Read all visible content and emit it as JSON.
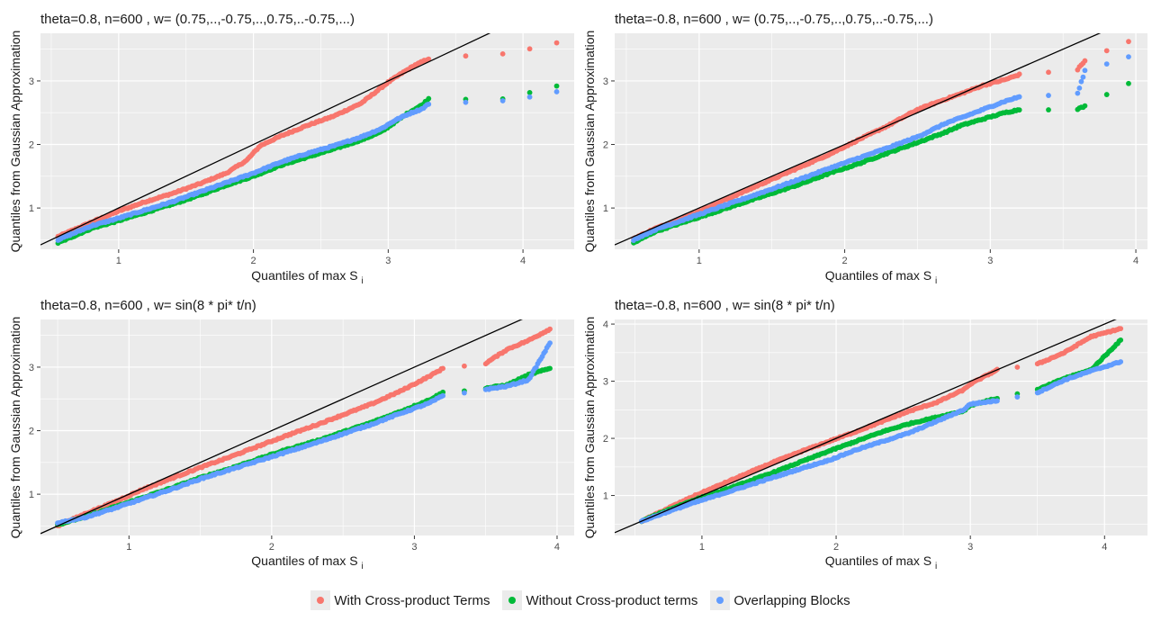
{
  "chart_data": [
    {
      "type": "scatter",
      "title": "theta=0.8, n=600 , w= (0.75,..,-0.75,..,0.75,..-0.75,...)",
      "xlabel": "Quantiles of max S",
      "xlabel_sub": "i",
      "ylabel": "Quantiles from Gaussian Approximation",
      "xlim": [
        0.42,
        4.38
      ],
      "ylim": [
        0.35,
        3.75
      ],
      "xticks": [
        1,
        2,
        3,
        4
      ],
      "yticks": [
        1,
        2,
        3
      ],
      "reference_line": {
        "slope": 1,
        "intercept": 0
      },
      "series": [
        {
          "name": "With Cross-product Terms",
          "points": [
            [
              0.55,
              0.55
            ],
            [
              0.8,
              0.78
            ],
            [
              1.0,
              0.95
            ],
            [
              1.2,
              1.1
            ],
            [
              1.4,
              1.23
            ],
            [
              1.6,
              1.38
            ],
            [
              1.8,
              1.55
            ],
            [
              1.95,
              1.75
            ],
            [
              2.05,
              1.98
            ],
            [
              2.2,
              2.13
            ],
            [
              2.4,
              2.3
            ],
            [
              2.6,
              2.45
            ],
            [
              2.8,
              2.65
            ],
            [
              3.0,
              2.98
            ],
            [
              3.1,
              3.12
            ],
            [
              3.2,
              3.25
            ],
            [
              3.3,
              3.35
            ],
            [
              3.85,
              3.42
            ],
            [
              4.25,
              3.6
            ]
          ]
        },
        {
          "name": "Without Cross-product terms",
          "points": [
            [
              0.55,
              0.45
            ],
            [
              0.8,
              0.68
            ],
            [
              1.0,
              0.8
            ],
            [
              1.2,
              0.93
            ],
            [
              1.4,
              1.06
            ],
            [
              1.6,
              1.2
            ],
            [
              1.8,
              1.36
            ],
            [
              2.0,
              1.5
            ],
            [
              2.2,
              1.67
            ],
            [
              2.4,
              1.8
            ],
            [
              2.6,
              1.93
            ],
            [
              2.8,
              2.07
            ],
            [
              2.95,
              2.2
            ],
            [
              3.05,
              2.35
            ],
            [
              3.15,
              2.5
            ],
            [
              3.25,
              2.62
            ],
            [
              3.3,
              2.72
            ],
            [
              3.85,
              2.72
            ],
            [
              4.25,
              2.92
            ]
          ]
        },
        {
          "name": "Overlapping Blocks",
          "points": [
            [
              0.55,
              0.5
            ],
            [
              0.8,
              0.72
            ],
            [
              1.0,
              0.84
            ],
            [
              1.2,
              0.97
            ],
            [
              1.4,
              1.1
            ],
            [
              1.6,
              1.25
            ],
            [
              1.8,
              1.4
            ],
            [
              2.0,
              1.55
            ],
            [
              2.2,
              1.72
            ],
            [
              2.4,
              1.86
            ],
            [
              2.6,
              1.98
            ],
            [
              2.8,
              2.12
            ],
            [
              2.95,
              2.25
            ],
            [
              3.05,
              2.38
            ],
            [
              3.15,
              2.48
            ],
            [
              3.25,
              2.56
            ],
            [
              3.3,
              2.64
            ],
            [
              3.85,
              2.68
            ],
            [
              4.25,
              2.83
            ]
          ]
        }
      ]
    },
    {
      "type": "scatter",
      "title": "theta=-0.8, n=600 , w= (0.75,..,-0.75,..,0.75,..-0.75,...)",
      "xlabel": "Quantiles of max S",
      "xlabel_sub": "i",
      "ylabel": "Quantiles from Gaussian Approximation",
      "xlim": [
        0.42,
        4.08
      ],
      "ylim": [
        0.35,
        3.75
      ],
      "xticks": [
        1,
        2,
        3,
        4
      ],
      "yticks": [
        1,
        2,
        3
      ],
      "reference_line": {
        "slope": 1,
        "intercept": 0
      },
      "series": [
        {
          "name": "With Cross-product Terms",
          "points": [
            [
              0.55,
              0.52
            ],
            [
              0.7,
              0.68
            ],
            [
              0.9,
              0.85
            ],
            [
              1.1,
              1.05
            ],
            [
              1.3,
              1.25
            ],
            [
              1.5,
              1.45
            ],
            [
              1.7,
              1.65
            ],
            [
              1.9,
              1.85
            ],
            [
              2.1,
              2.08
            ],
            [
              2.3,
              2.3
            ],
            [
              2.5,
              2.55
            ],
            [
              2.7,
              2.72
            ],
            [
              2.8,
              2.8
            ],
            [
              2.95,
              2.93
            ],
            [
              3.1,
              3.02
            ],
            [
              3.2,
              3.1
            ],
            [
              3.6,
              3.18
            ],
            [
              3.65,
              3.32
            ],
            [
              3.95,
              3.62
            ]
          ]
        },
        {
          "name": "Without Cross-product terms",
          "points": [
            [
              0.55,
              0.45
            ],
            [
              0.7,
              0.63
            ],
            [
              0.9,
              0.78
            ],
            [
              1.1,
              0.93
            ],
            [
              1.3,
              1.08
            ],
            [
              1.5,
              1.23
            ],
            [
              1.7,
              1.38
            ],
            [
              1.9,
              1.55
            ],
            [
              2.1,
              1.7
            ],
            [
              2.3,
              1.87
            ],
            [
              2.5,
              2.03
            ],
            [
              2.7,
              2.2
            ],
            [
              2.8,
              2.3
            ],
            [
              2.95,
              2.4
            ],
            [
              3.1,
              2.5
            ],
            [
              3.2,
              2.55
            ],
            [
              3.6,
              2.56
            ],
            [
              3.65,
              2.6
            ],
            [
              3.95,
              2.96
            ]
          ]
        },
        {
          "name": "Overlapping Blocks",
          "points": [
            [
              0.55,
              0.5
            ],
            [
              0.7,
              0.66
            ],
            [
              0.9,
              0.82
            ],
            [
              1.1,
              0.98
            ],
            [
              1.3,
              1.14
            ],
            [
              1.5,
              1.3
            ],
            [
              1.7,
              1.46
            ],
            [
              1.9,
              1.63
            ],
            [
              2.1,
              1.79
            ],
            [
              2.3,
              1.95
            ],
            [
              2.5,
              2.12
            ],
            [
              2.7,
              2.34
            ],
            [
              2.8,
              2.42
            ],
            [
              2.95,
              2.55
            ],
            [
              3.1,
              2.68
            ],
            [
              3.2,
              2.75
            ],
            [
              3.6,
              2.8
            ],
            [
              3.65,
              3.16
            ],
            [
              3.95,
              3.38
            ]
          ]
        }
      ]
    },
    {
      "type": "scatter",
      "title": "theta=0.8, n=600 , w= sin(8 * pi* t/n)",
      "xlabel": "Quantiles of max S",
      "xlabel_sub": "i",
      "ylabel": "Quantiles from Gaussian Approximation",
      "xlim": [
        0.38,
        4.12
      ],
      "ylim": [
        0.35,
        3.75
      ],
      "xticks": [
        1,
        2,
        3,
        4
      ],
      "yticks": [
        1,
        2,
        3
      ],
      "reference_line": {
        "slope": 1,
        "intercept": 0
      },
      "series": [
        {
          "name": "With Cross-product Terms",
          "points": [
            [
              0.5,
              0.5
            ],
            [
              0.7,
              0.7
            ],
            [
              0.9,
              0.88
            ],
            [
              1.1,
              1.08
            ],
            [
              1.3,
              1.25
            ],
            [
              1.5,
              1.42
            ],
            [
              1.7,
              1.58
            ],
            [
              1.9,
              1.75
            ],
            [
              2.1,
              1.92
            ],
            [
              2.3,
              2.08
            ],
            [
              2.5,
              2.25
            ],
            [
              2.7,
              2.42
            ],
            [
              2.9,
              2.62
            ],
            [
              3.1,
              2.85
            ],
            [
              3.2,
              2.98
            ],
            [
              3.5,
              3.06
            ],
            [
              3.65,
              3.28
            ],
            [
              3.8,
              3.42
            ],
            [
              3.95,
              3.6
            ]
          ]
        },
        {
          "name": "Without Cross-product terms",
          "points": [
            [
              0.5,
              0.52
            ],
            [
              0.7,
              0.65
            ],
            [
              0.9,
              0.8
            ],
            [
              1.1,
              0.95
            ],
            [
              1.3,
              1.1
            ],
            [
              1.5,
              1.26
            ],
            [
              1.7,
              1.4
            ],
            [
              1.9,
              1.55
            ],
            [
              2.1,
              1.7
            ],
            [
              2.3,
              1.83
            ],
            [
              2.5,
              1.98
            ],
            [
              2.7,
              2.13
            ],
            [
              2.9,
              2.3
            ],
            [
              3.1,
              2.48
            ],
            [
              3.2,
              2.6
            ],
            [
              3.5,
              2.67
            ],
            [
              3.65,
              2.72
            ],
            [
              3.8,
              2.88
            ],
            [
              3.95,
              2.98
            ]
          ]
        },
        {
          "name": "Overlapping Blocks",
          "points": [
            [
              0.5,
              0.55
            ],
            [
              0.7,
              0.64
            ],
            [
              0.9,
              0.78
            ],
            [
              1.1,
              0.93
            ],
            [
              1.3,
              1.08
            ],
            [
              1.5,
              1.24
            ],
            [
              1.7,
              1.38
            ],
            [
              1.9,
              1.52
            ],
            [
              2.1,
              1.66
            ],
            [
              2.3,
              1.8
            ],
            [
              2.5,
              1.95
            ],
            [
              2.7,
              2.1
            ],
            [
              2.9,
              2.27
            ],
            [
              3.1,
              2.43
            ],
            [
              3.2,
              2.55
            ],
            [
              3.5,
              2.65
            ],
            [
              3.65,
              2.7
            ],
            [
              3.8,
              2.8
            ],
            [
              3.95,
              3.38
            ]
          ]
        }
      ]
    },
    {
      "type": "scatter",
      "title": "theta=-0.8, n=600 , w= sin(8 * pi* t/n)",
      "xlabel": "Quantiles of max S",
      "xlabel_sub": "i",
      "ylabel": "Quantiles from Gaussian Approximation",
      "xlim": [
        0.35,
        4.32
      ],
      "ylim": [
        0.3,
        4.08
      ],
      "xticks": [
        1,
        2,
        3,
        4
      ],
      "yticks": [
        1,
        2,
        3,
        4
      ],
      "reference_line": {
        "slope": 1,
        "intercept": 0
      },
      "series": [
        {
          "name": "With Cross-product Terms",
          "points": [
            [
              0.55,
              0.55
            ],
            [
              0.75,
              0.78
            ],
            [
              0.95,
              1.0
            ],
            [
              1.15,
              1.2
            ],
            [
              1.35,
              1.4
            ],
            [
              1.55,
              1.6
            ],
            [
              1.75,
              1.78
            ],
            [
              1.95,
              1.95
            ],
            [
              2.15,
              2.12
            ],
            [
              2.35,
              2.3
            ],
            [
              2.55,
              2.48
            ],
            [
              2.75,
              2.63
            ],
            [
              2.95,
              2.85
            ],
            [
              3.0,
              2.95
            ],
            [
              3.2,
              3.2
            ],
            [
              3.5,
              3.3
            ],
            [
              3.7,
              3.5
            ],
            [
              3.9,
              3.78
            ],
            [
              4.12,
              3.92
            ]
          ]
        },
        {
          "name": "Without Cross-product terms",
          "points": [
            [
              0.55,
              0.55
            ],
            [
              0.75,
              0.75
            ],
            [
              0.95,
              0.93
            ],
            [
              1.15,
              1.08
            ],
            [
              1.35,
              1.25
            ],
            [
              1.55,
              1.42
            ],
            [
              1.75,
              1.6
            ],
            [
              1.95,
              1.78
            ],
            [
              2.15,
              1.95
            ],
            [
              2.35,
              2.12
            ],
            [
              2.55,
              2.26
            ],
            [
              2.75,
              2.37
            ],
            [
              2.95,
              2.48
            ],
            [
              3.0,
              2.58
            ],
            [
              3.2,
              2.7
            ],
            [
              3.5,
              2.85
            ],
            [
              3.7,
              3.05
            ],
            [
              3.9,
              3.2
            ],
            [
              4.12,
              3.72
            ]
          ]
        },
        {
          "name": "Overlapping Blocks",
          "points": [
            [
              0.55,
              0.55
            ],
            [
              0.75,
              0.72
            ],
            [
              0.95,
              0.88
            ],
            [
              1.15,
              1.03
            ],
            [
              1.35,
              1.18
            ],
            [
              1.55,
              1.33
            ],
            [
              1.75,
              1.48
            ],
            [
              1.95,
              1.62
            ],
            [
              2.15,
              1.8
            ],
            [
              2.35,
              1.95
            ],
            [
              2.55,
              2.1
            ],
            [
              2.75,
              2.3
            ],
            [
              2.95,
              2.5
            ],
            [
              3.0,
              2.6
            ],
            [
              3.2,
              2.66
            ],
            [
              3.5,
              2.8
            ],
            [
              3.7,
              3.02
            ],
            [
              3.9,
              3.18
            ],
            [
              4.12,
              3.34
            ]
          ]
        }
      ]
    }
  ],
  "legend": {
    "items": [
      {
        "label": "With Cross-product Terms",
        "color": "#F8766D"
      },
      {
        "label": "Without Cross-product terms",
        "color": "#00BA38"
      },
      {
        "label": "Overlapping Blocks",
        "color": "#619CFF"
      }
    ]
  },
  "colors": {
    "panel_bg": "#EBEBEB",
    "grid": "#FFFFFF",
    "reference_line": "#000000",
    "text": "#1A1A1A",
    "tick_text": "#4D4D4D"
  }
}
